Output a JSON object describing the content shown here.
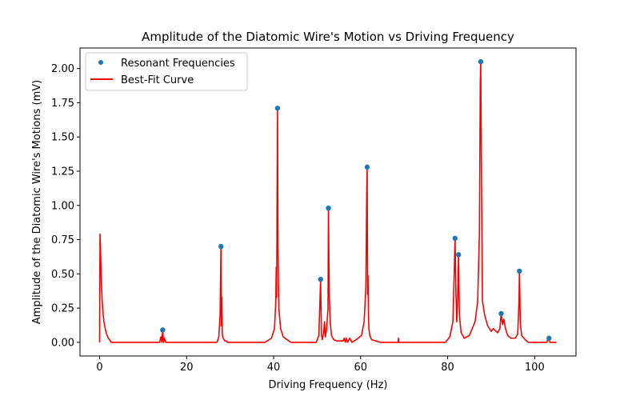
{
  "chart_data": {
    "type": "scatter",
    "title": "Amplitude of the Diatomic Wire's Motion vs Driving Frequency",
    "xlabel": "Driving Frequency (Hz)",
    "ylabel": "Amplitude of the Diatomic Wire's Motions (mV)",
    "xlim": [
      -4.5,
      109.5
    ],
    "ylim": [
      -0.1,
      2.15
    ],
    "xticks": [
      0,
      20,
      40,
      60,
      80,
      100
    ],
    "yticks": [
      0.0,
      0.25,
      0.5,
      0.75,
      1.0,
      1.25,
      1.5,
      1.75,
      2.0
    ],
    "xtick_labels": [
      "0",
      "20",
      "40",
      "60",
      "80",
      "100"
    ],
    "ytick_labels": [
      "0.00",
      "0.25",
      "0.50",
      "0.75",
      "1.00",
      "1.25",
      "1.50",
      "1.75",
      "2.00"
    ],
    "grid": false,
    "legend_position": "top-left",
    "series": [
      {
        "name": "Resonant Frequencies",
        "kind": "scatter",
        "color": "#1f77b4",
        "x": [
          14.5,
          27.9,
          40.9,
          50.8,
          52.6,
          61.5,
          81.7,
          82.5,
          87.6,
          92.3,
          96.5,
          103.3
        ],
        "y": [
          0.09,
          0.7,
          1.71,
          0.46,
          0.98,
          1.28,
          0.76,
          0.64,
          2.05,
          0.21,
          0.52,
          0.03
        ]
      },
      {
        "name": "Best-Fit Curve",
        "kind": "line",
        "color": "#ff0000",
        "x": [
          0.0,
          0.1,
          0.2,
          0.4,
          0.6,
          0.8,
          1.0,
          1.3,
          1.6,
          2.0,
          2.5,
          2.6,
          13.8,
          14.1,
          14.3,
          14.5,
          14.7,
          14.9,
          15.2,
          27.0,
          27.4,
          27.7,
          27.9,
          28.0,
          28.1,
          28.2,
          28.4,
          28.8,
          29.2,
          29.4,
          38.0,
          39.5,
          40.2,
          40.5,
          40.6,
          40.7,
          40.8,
          40.9,
          41.0,
          41.2,
          41.6,
          42.2,
          43.5,
          44.0,
          49.8,
          50.4,
          50.8,
          51.0,
          51.2,
          51.5,
          51.7,
          51.9,
          52.2,
          52.5,
          52.6,
          52.8,
          53.0,
          53.3,
          53.8,
          54.5,
          56.0,
          56.2,
          56.5,
          56.7,
          57.0,
          57.5,
          58.0,
          59.0,
          60.2,
          60.8,
          61.2,
          61.4,
          61.5,
          61.6,
          61.7,
          61.8,
          61.9,
          62.1,
          62.5,
          63.5,
          64.5,
          68.6,
          68.7,
          68.8,
          79.5,
          80.5,
          81.2,
          81.5,
          81.7,
          81.9,
          82.1,
          82.3,
          82.5,
          82.7,
          83.1,
          83.8,
          85.0,
          86.3,
          86.9,
          87.3,
          87.5,
          87.6,
          87.8,
          88.0,
          88.5,
          89.2,
          90.0,
          90.5,
          91.5,
          92.0,
          92.3,
          92.6,
          92.9,
          93.3,
          93.8,
          94.5,
          95.5,
          96.1,
          96.4,
          96.5,
          96.7,
          97.0,
          97.8,
          98.5,
          102.8,
          103.0,
          103.3,
          103.5,
          103.8,
          105.0
        ],
        "y": [
          0.0,
          0.79,
          0.7,
          0.45,
          0.3,
          0.21,
          0.15,
          0.1,
          0.06,
          0.03,
          0.01,
          0.0,
          0.0,
          0.04,
          0.0,
          0.09,
          0.0,
          0.03,
          0.0,
          0.0,
          0.04,
          0.2,
          0.7,
          0.12,
          0.33,
          0.06,
          0.03,
          0.01,
          0.01,
          0.0,
          0.0,
          0.03,
          0.1,
          0.3,
          0.55,
          0.33,
          1.1,
          1.71,
          0.7,
          0.25,
          0.1,
          0.04,
          0.01,
          0.0,
          0.0,
          0.05,
          0.46,
          0.05,
          0.02,
          0.07,
          0.15,
          0.04,
          0.1,
          0.25,
          0.98,
          0.33,
          0.15,
          0.05,
          0.02,
          0.01,
          0.01,
          0.03,
          0.0,
          0.03,
          0.0,
          0.03,
          0.0,
          0.02,
          0.05,
          0.15,
          0.4,
          1.1,
          1.28,
          0.35,
          0.49,
          0.2,
          0.1,
          0.05,
          0.02,
          0.01,
          0.0,
          0.0,
          0.03,
          0.0,
          0.0,
          0.04,
          0.15,
          0.5,
          0.76,
          0.36,
          0.15,
          0.3,
          0.64,
          0.2,
          0.07,
          0.03,
          0.05,
          0.15,
          0.3,
          0.8,
          1.9,
          2.05,
          1.1,
          0.3,
          0.2,
          0.12,
          0.08,
          0.1,
          0.07,
          0.1,
          0.21,
          0.13,
          0.17,
          0.1,
          0.05,
          0.03,
          0.03,
          0.06,
          0.3,
          0.52,
          0.14,
          0.05,
          0.02,
          0.0,
          0.0,
          0.02,
          0.03,
          0.0,
          0.0,
          0.0
        ]
      }
    ]
  }
}
